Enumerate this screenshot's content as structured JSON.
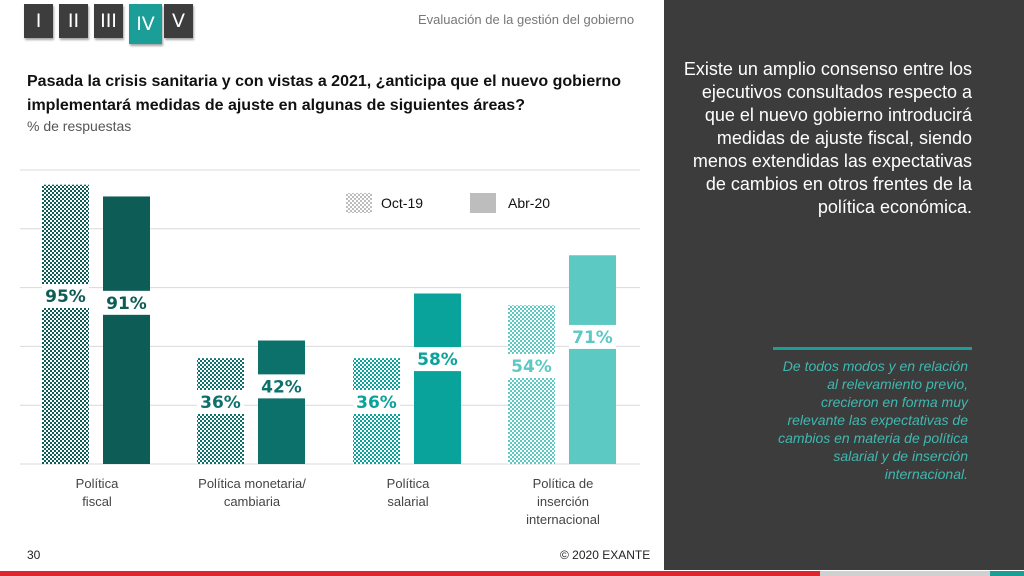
{
  "nav": {
    "tabs": [
      {
        "label": "I"
      },
      {
        "label": "II"
      },
      {
        "label": "III"
      },
      {
        "label": "IV",
        "active": true
      },
      {
        "label": "V"
      }
    ]
  },
  "header": {
    "section_title": "Evaluación de la gestión del gobierno"
  },
  "question": "Pasada la crisis sanitaria y con vistas a 2021, ¿anticipa que el nuevo gobierno implementará medidas de ajuste en algunas de siguientes áreas?",
  "subtitle": "% de respuestas",
  "chart_data": {
    "type": "bar",
    "categories": [
      [
        "Política",
        "fiscal"
      ],
      [
        "Política monetaria/",
        "cambiaria"
      ],
      [
        "Política",
        "salarial"
      ],
      [
        "Política de",
        "inserción",
        "internacional"
      ]
    ],
    "series": [
      {
        "name": "Oct-19",
        "values": [
          95,
          36,
          36,
          54
        ],
        "pattern": "checkered"
      },
      {
        "name": "Abr-20",
        "values": [
          91,
          42,
          58,
          71
        ],
        "pattern": "solid"
      }
    ],
    "value_labels": {
      "Oct-19": [
        "95%",
        "36%",
        "36%",
        "54%"
      ],
      "Abr-20": [
        "91%",
        "42%",
        "58%",
        "71%"
      ]
    },
    "group_colors": [
      "#0d5c56",
      "#0d716b",
      "#0aa39b",
      "#5cc9c3"
    ],
    "label_colors": [
      "#0d5c56",
      "#0d716b",
      "#0aa39b",
      "#5cc9c3"
    ],
    "legend_swatch_color": "#bdbdbd",
    "ylim": [
      0,
      100
    ],
    "grid": true,
    "legend_position": "top-right"
  },
  "side_panel": {
    "text": "Existe un amplio consenso entre los ejecutivos consultados respecto a que el nuevo gobierno introducirá medidas de ajuste fiscal, siendo menos extendidas las expectativas de cambios en otros frentes de la política económica.",
    "note": "De todos modos y en relación al relevamiento previo, crecieron en forma muy relevante las expectativas de cambios en materia de política salarial y de inserción internacional."
  },
  "footer": {
    "page_number": "30",
    "copyright": "© 2020 EXANTE"
  },
  "colors": {
    "accent": "#1a9e97",
    "panel": "#3c3c3c",
    "red": "#e1252c"
  }
}
